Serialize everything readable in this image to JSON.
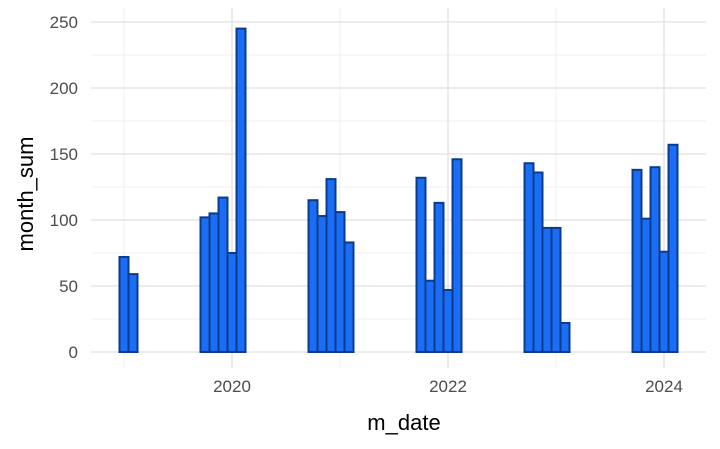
{
  "chart_data": {
    "type": "bar",
    "xlabel": "m_date",
    "ylabel": "month_sum",
    "ylim": [
      0,
      250
    ],
    "y_ticks": [
      0,
      50,
      100,
      150,
      200,
      250
    ],
    "x_ticks": [
      "2020",
      "2022",
      "2024"
    ],
    "grid": true,
    "bar_fill": "#1a6ef5",
    "bar_stroke": "#0d3b8c",
    "series": [
      {
        "values": [
          {
            "x": "2019-01",
            "y": 72
          },
          {
            "x": "2019-02",
            "y": 59
          },
          {
            "x": "2019-10",
            "y": 102
          },
          {
            "x": "2019-11",
            "y": 105
          },
          {
            "x": "2019-12",
            "y": 117
          },
          {
            "x": "2020-01",
            "y": 75
          },
          {
            "x": "2020-02",
            "y": 245
          },
          {
            "x": "2020-10",
            "y": 115
          },
          {
            "x": "2020-11",
            "y": 103
          },
          {
            "x": "2020-12",
            "y": 131
          },
          {
            "x": "2021-01",
            "y": 106
          },
          {
            "x": "2021-02",
            "y": 83
          },
          {
            "x": "2021-10",
            "y": 132
          },
          {
            "x": "2021-11",
            "y": 54
          },
          {
            "x": "2021-12",
            "y": 113
          },
          {
            "x": "2022-01",
            "y": 47
          },
          {
            "x": "2022-02",
            "y": 146
          },
          {
            "x": "2022-10",
            "y": 143
          },
          {
            "x": "2022-11",
            "y": 136
          },
          {
            "x": "2022-12",
            "y": 94
          },
          {
            "x": "2023-01",
            "y": 94
          },
          {
            "x": "2023-02",
            "y": 22
          },
          {
            "x": "2023-10",
            "y": 138
          },
          {
            "x": "2023-11",
            "y": 101
          },
          {
            "x": "2023-12",
            "y": 140
          },
          {
            "x": "2024-01",
            "y": 76
          },
          {
            "x": "2024-02",
            "y": 157
          }
        ]
      }
    ]
  }
}
